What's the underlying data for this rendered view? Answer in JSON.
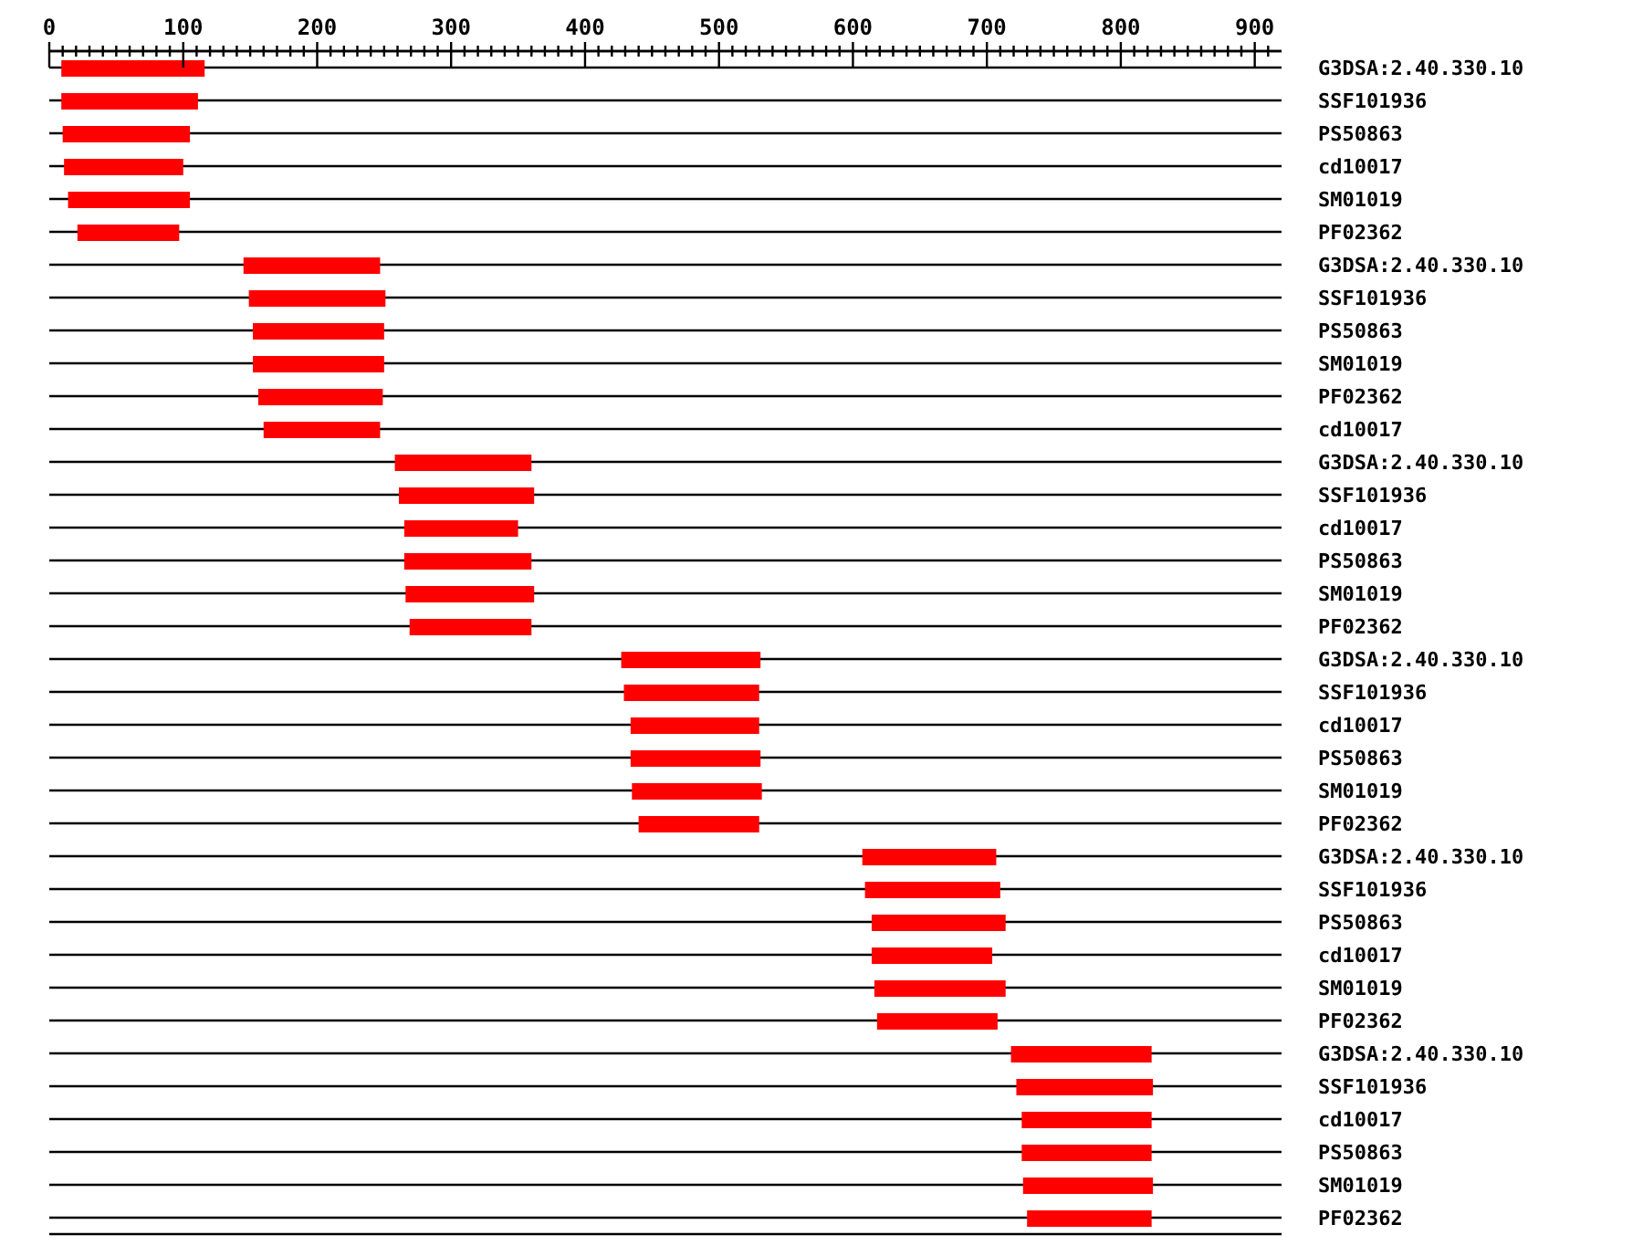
{
  "chart_data": {
    "type": "bar",
    "orientation": "horizontal",
    "grid": "y",
    "color": "#ff0000",
    "categories": [
      "G3DSA:2.40.330.10",
      "SSF101936",
      "PS50863",
      "cd10017",
      "SM01019",
      "PF02362",
      "G3DSA:2.40.330.10",
      "SSF101936",
      "PS50863",
      "SM01019",
      "PF02362",
      "cd10017",
      "G3DSA:2.40.330.10",
      "SSF101936",
      "cd10017",
      "PS50863",
      "SM01019",
      "PF02362",
      "G3DSA:2.40.330.10",
      "SSF101936",
      "cd10017",
      "PS50863",
      "SM01019",
      "PF02362",
      "G3DSA:2.40.330.10",
      "SSF101936",
      "PS50863",
      "cd10017",
      "SM01019",
      "PF02362",
      "G3DSA:2.40.330.10",
      "SSF101936",
      "cd10017",
      "PS50863",
      "SM01019",
      "PF02362"
    ],
    "base": [
      9,
      9,
      10,
      11,
      14,
      21,
      145,
      149,
      152,
      152,
      156,
      160,
      258,
      261,
      265,
      265,
      266,
      269,
      427,
      429,
      434,
      434,
      435,
      440,
      607,
      609,
      614,
      614,
      616,
      618,
      718,
      722,
      726,
      726,
      727,
      730
    ],
    "values": [
      107,
      102,
      95,
      89,
      91,
      76,
      102,
      102,
      98,
      98,
      93,
      87,
      102,
      101,
      85,
      95,
      96,
      91,
      104,
      101,
      96,
      97,
      97,
      90,
      100,
      101,
      100,
      90,
      98,
      90,
      105,
      102,
      97,
      97,
      97,
      93
    ],
    "xlim": [
      0,
      920
    ],
    "xticks": [
      0,
      {
        "value": 10,
        "label": null
      },
      {
        "value": 20,
        "label": null
      },
      {
        "value": 30,
        "label": null
      },
      {
        "value": 40,
        "label": null
      },
      {
        "value": 50,
        "label": null
      },
      {
        "value": 60,
        "label": null
      },
      {
        "value": 70,
        "label": null
      },
      {
        "value": 80,
        "label": null
      },
      {
        "value": 90,
        "label": null
      },
      100,
      {
        "value": 110,
        "label": null
      },
      {
        "value": 120,
        "label": null
      },
      {
        "value": 130,
        "label": null
      },
      {
        "value": 140,
        "label": null
      },
      {
        "value": 150,
        "label": null
      },
      {
        "value": 160,
        "label": null
      },
      {
        "value": 170,
        "label": null
      },
      {
        "value": 180,
        "label": null
      },
      {
        "value": 190,
        "label": null
      },
      200,
      {
        "value": 210,
        "label": null
      },
      {
        "value": 220,
        "label": null
      },
      {
        "value": 230,
        "label": null
      },
      {
        "value": 240,
        "label": null
      },
      {
        "value": 250,
        "label": null
      },
      {
        "value": 260,
        "label": null
      },
      {
        "value": 270,
        "label": null
      },
      {
        "value": 280,
        "label": null
      },
      {
        "value": 290,
        "label": null
      },
      300,
      {
        "value": 310,
        "label": null
      },
      {
        "value": 320,
        "label": null
      },
      {
        "value": 330,
        "label": null
      },
      {
        "value": 340,
        "label": null
      },
      {
        "value": 350,
        "label": null
      },
      {
        "value": 360,
        "label": null
      },
      {
        "value": 370,
        "label": null
      },
      {
        "value": 380,
        "label": null
      },
      {
        "value": 390,
        "label": null
      },
      400,
      {
        "value": 410,
        "label": null
      },
      {
        "value": 420,
        "label": null
      },
      {
        "value": 430,
        "label": null
      },
      {
        "value": 440,
        "label": null
      },
      {
        "value": 450,
        "label": null
      },
      {
        "value": 460,
        "label": null
      },
      {
        "value": 470,
        "label": null
      },
      {
        "value": 480,
        "label": null
      },
      {
        "value": 490,
        "label": null
      },
      500,
      {
        "value": 510,
        "label": null
      },
      {
        "value": 520,
        "label": null
      },
      {
        "value": 530,
        "label": null
      },
      {
        "value": 540,
        "label": null
      },
      {
        "value": 550,
        "label": null
      },
      {
        "value": 560,
        "label": null
      },
      {
        "value": 570,
        "label": null
      },
      {
        "value": 580,
        "label": null
      },
      {
        "value": 590,
        "label": null
      },
      600,
      {
        "value": 610,
        "label": null
      },
      {
        "value": 620,
        "label": null
      },
      {
        "value": 630,
        "label": null
      },
      {
        "value": 640,
        "label": null
      },
      {
        "value": 650,
        "label": null
      },
      {
        "value": 660,
        "label": null
      },
      {
        "value": 670,
        "label": null
      },
      {
        "value": 680,
        "label": null
      },
      {
        "value": 690,
        "label": null
      },
      700,
      {
        "value": 710,
        "label": null
      },
      {
        "value": 720,
        "label": null
      },
      {
        "value": 730,
        "label": null
      },
      {
        "value": 740,
        "label": null
      },
      {
        "value": 750,
        "label": null
      },
      {
        "value": 760,
        "label": null
      },
      {
        "value": 770,
        "label": null
      },
      {
        "value": 780,
        "label": null
      },
      {
        "value": 790,
        "label": null
      },
      800,
      {
        "value": 810,
        "label": null
      },
      {
        "value": 820,
        "label": null
      },
      {
        "value": 830,
        "label": null
      },
      {
        "value": 840,
        "label": null
      },
      {
        "value": 850,
        "label": null
      },
      {
        "value": 860,
        "label": null
      },
      {
        "value": 870,
        "label": null
      },
      {
        "value": 880,
        "label": null
      },
      {
        "value": 890,
        "label": null
      },
      900,
      {
        "value": 910,
        "label": null
      }
    ]
  }
}
